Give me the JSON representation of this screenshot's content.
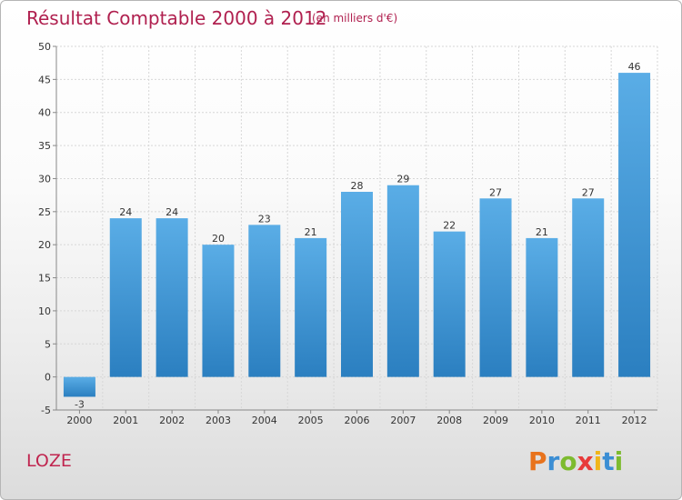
{
  "page": {
    "title": "Résultat Comptable 2000 à 2012",
    "subtitle": "(en milliers d'€)",
    "commune": "LOZE",
    "logo_text": "Proxiti"
  },
  "colors": {
    "title": "#b0204f",
    "bar_top": "#5aade6",
    "bar_bottom": "#2b7fc0",
    "grid": "#d7d7d7",
    "logo_letters": [
      "#e8731d",
      "#3b8ed4",
      "#7dbb2f",
      "#e83a3a",
      "#f0b51a",
      "#3b8ed4",
      "#7dbb2f"
    ]
  },
  "chart_data": {
    "type": "bar",
    "title": "Résultat Comptable 2000 à 2012",
    "subtitle": "(en milliers d'€)",
    "xlabel": "",
    "ylabel": "",
    "categories": [
      "2000",
      "2001",
      "2002",
      "2003",
      "2004",
      "2005",
      "2006",
      "2007",
      "2008",
      "2009",
      "2010",
      "2011",
      "2012"
    ],
    "values": [
      -3,
      24,
      24,
      20,
      23,
      21,
      28,
      29,
      22,
      27,
      21,
      27,
      46
    ],
    "ylim": [
      -5,
      50
    ],
    "yticks": [
      -5,
      0,
      5,
      10,
      15,
      20,
      25,
      30,
      35,
      40,
      45,
      50
    ],
    "grid": true,
    "legend": "none"
  }
}
